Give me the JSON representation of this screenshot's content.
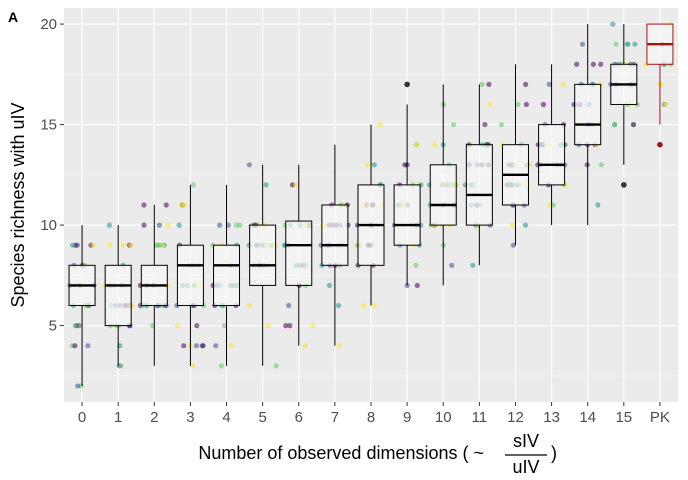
{
  "panel_label": "A",
  "chart_data": {
    "type": "box",
    "ylabel": "Species richness with uIV",
    "xlabel": {
      "prefix": "Number of observed dimensions ( ~",
      "frac_numerator": "sIV",
      "frac_denominator": "uIV",
      "suffix": ")"
    },
    "categories": [
      "0",
      "1",
      "2",
      "3",
      "4",
      "5",
      "6",
      "7",
      "8",
      "9",
      "10",
      "11",
      "12",
      "13",
      "14",
      "15",
      "PK"
    ],
    "ylim": [
      1.2,
      20.8
    ],
    "yticks": [
      5,
      10,
      15,
      20
    ],
    "grid": true,
    "colors": {
      "panel_bg": "#ebebeb",
      "grid": "#ffffff",
      "box_fill": "#f7f7f7",
      "box_line": "#000000",
      "highlight": "#a31515",
      "jitter_palette": [
        "#440154",
        "#3b528b",
        "#21918c",
        "#5ec962",
        "#fde725"
      ]
    },
    "highlight_category": "PK",
    "boxes": [
      {
        "x": "0",
        "lower": 2,
        "q1": 6,
        "median": 7,
        "q3": 8,
        "upper": 10,
        "outliers": []
      },
      {
        "x": "1",
        "lower": 3,
        "q1": 5,
        "median": 7,
        "q3": 8,
        "upper": 10,
        "outliers": []
      },
      {
        "x": "2",
        "lower": 3,
        "q1": 6,
        "median": 7,
        "q3": 8,
        "upper": 11,
        "outliers": []
      },
      {
        "x": "3",
        "lower": 3,
        "q1": 6,
        "median": 8,
        "q3": 9,
        "upper": 12,
        "outliers": []
      },
      {
        "x": "4",
        "lower": 3,
        "q1": 6,
        "median": 8,
        "q3": 9,
        "upper": 12,
        "outliers": []
      },
      {
        "x": "5",
        "lower": 3,
        "q1": 7,
        "median": 8,
        "q3": 10,
        "upper": 13,
        "outliers": []
      },
      {
        "x": "6",
        "lower": 4,
        "q1": 7,
        "median": 9,
        "q3": 10.2,
        "upper": 13,
        "outliers": []
      },
      {
        "x": "7",
        "lower": 4,
        "q1": 8,
        "median": 9,
        "q3": 11,
        "upper": 14,
        "outliers": []
      },
      {
        "x": "8",
        "lower": 6,
        "q1": 8,
        "median": 10,
        "q3": 12,
        "upper": 15,
        "outliers": []
      },
      {
        "x": "9",
        "lower": 7,
        "q1": 9,
        "median": 10,
        "q3": 12,
        "upper": 16,
        "outliers": [
          17
        ]
      },
      {
        "x": "10",
        "lower": 7,
        "q1": 10,
        "median": 11,
        "q3": 13,
        "upper": 17,
        "outliers": []
      },
      {
        "x": "11",
        "lower": 8,
        "q1": 10,
        "median": 11.5,
        "q3": 14,
        "upper": 17,
        "outliers": []
      },
      {
        "x": "12",
        "lower": 9,
        "q1": 11,
        "median": 12.5,
        "q3": 14,
        "upper": 18,
        "outliers": []
      },
      {
        "x": "13",
        "lower": 10,
        "q1": 12,
        "median": 13,
        "q3": 15,
        "upper": 18,
        "outliers": []
      },
      {
        "x": "14",
        "lower": 10,
        "q1": 14,
        "median": 15,
        "q3": 17,
        "upper": 20,
        "outliers": []
      },
      {
        "x": "15",
        "lower": 13,
        "q1": 16,
        "median": 17,
        "q3": 18,
        "upper": 20,
        "outliers": [
          12
        ]
      },
      {
        "x": "PK",
        "lower": 15,
        "q1": 18,
        "median": 19,
        "q3": 20,
        "upper": 20,
        "outliers": [
          14
        ]
      }
    ]
  }
}
